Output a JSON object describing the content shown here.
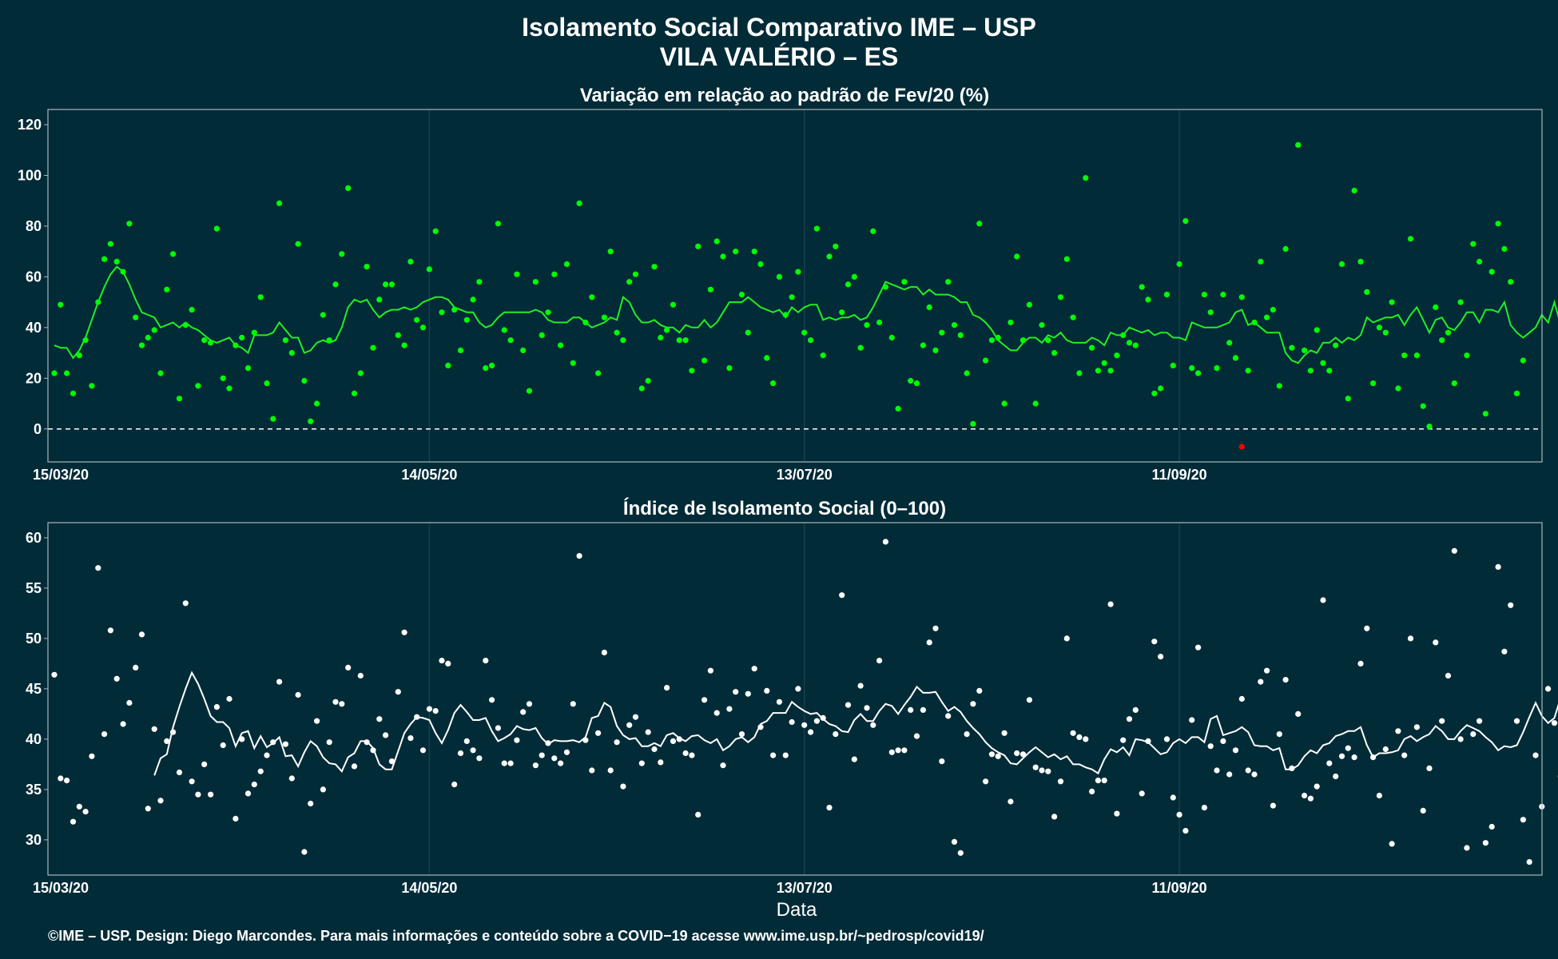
{
  "title": "Isolamento Social Comparativo IME – USP",
  "subtitle": "VILA VALÉRIO – ES",
  "footer": "©IME – USP. Design: Diego Marcondes. Para mais informações e conteúdo sobre a COVID−19 acesse www.ime.usp.br/~pedrosp/covid19/",
  "colors": {
    "background": "#022b38",
    "panel_border": "#a9b7bb",
    "grid": "#16424d",
    "variation_points": "#00ff00",
    "variation_negative": "#ff0000",
    "variation_line": "#22ee22",
    "variation_line_recent": "#ffffff",
    "index_points": "#ffffff",
    "index_line": "#ffffff",
    "text": "#ffffff"
  },
  "chart_data": [
    {
      "type": "scatter",
      "title": "Variação em relação ao padrão de Fev/20 (%)",
      "x_axis": {
        "start_date": "15/03/20",
        "end_date": "07/11/20",
        "tick_labels": [
          "15/03/20",
          "14/05/20",
          "13/07/20",
          "11/09/20"
        ]
      },
      "ylim": [
        -13,
        126
      ],
      "yticks": [
        0,
        20,
        40,
        60,
        80,
        100,
        120
      ],
      "reference_line": 0,
      "grid": "vertical",
      "series": [
        {
          "kind": "points",
          "values": [
            22,
            49,
            22,
            14,
            29,
            35,
            17,
            50,
            67,
            73,
            66,
            62,
            81,
            44,
            33,
            36,
            39,
            22,
            55,
            69,
            12,
            41,
            47,
            17,
            35,
            34,
            79,
            20,
            16,
            33,
            36,
            24,
            38,
            52,
            18,
            4,
            89,
            35,
            30,
            73,
            19,
            3,
            10,
            45,
            35,
            57,
            69,
            95,
            14,
            22,
            64,
            32,
            51,
            57,
            57,
            37,
            33,
            66,
            43,
            40,
            63,
            78,
            46,
            25,
            47,
            31,
            43,
            51,
            58,
            24,
            25,
            81,
            39,
            35,
            61,
            31,
            15,
            58,
            37,
            46,
            61,
            33,
            65,
            26,
            89,
            42,
            52,
            22,
            44,
            70,
            38,
            35,
            58,
            61,
            16,
            19,
            64,
            36,
            39,
            49,
            35,
            35,
            23,
            72,
            27,
            55,
            74,
            68,
            24,
            70,
            53,
            38,
            70,
            65,
            28,
            18,
            60,
            45,
            52,
            62,
            38,
            35,
            79,
            29,
            68,
            72,
            46,
            57,
            60,
            32,
            41,
            78,
            42,
            56,
            36,
            8,
            58,
            19,
            18,
            33,
            48,
            31,
            38,
            58,
            41,
            37,
            22,
            2,
            81,
            27,
            35,
            36,
            10,
            42,
            68,
            35,
            49,
            10,
            41,
            35,
            30,
            52,
            67,
            44,
            22,
            99,
            32,
            23,
            26,
            23,
            29,
            37,
            34,
            33,
            56,
            51,
            14,
            16,
            53,
            25,
            65,
            82,
            24,
            22,
            53,
            46,
            24,
            53,
            34,
            28,
            52,
            23,
            42,
            66,
            44,
            47,
            17,
            71,
            32,
            112,
            31,
            23,
            39,
            26,
            23,
            33,
            65,
            12,
            94,
            66,
            54,
            18,
            40,
            38,
            50,
            16,
            29,
            75,
            29,
            9,
            1,
            48,
            35,
            38,
            18,
            50,
            29,
            73,
            66,
            6,
            62,
            81,
            71,
            58,
            14,
            27
          ],
          "negative_points": [
            [
              190,
              -7
            ]
          ]
        },
        {
          "kind": "moving_average",
          "values": [
            33,
            32,
            32,
            28,
            31,
            36,
            43,
            50,
            56,
            61,
            64,
            62,
            57,
            51,
            46,
            45,
            44,
            40,
            41,
            42,
            40,
            42,
            40,
            39,
            37,
            35,
            34,
            35,
            36,
            33,
            32,
            30,
            37,
            37,
            37,
            38,
            42,
            39,
            36,
            36,
            30,
            31,
            34,
            35,
            34,
            35,
            40,
            48,
            51,
            50,
            51,
            47,
            44,
            46,
            47,
            47,
            48,
            47,
            48,
            50,
            51,
            52,
            52,
            51,
            48,
            47,
            46,
            46,
            42,
            40,
            41,
            44,
            46,
            46,
            46,
            46,
            46,
            47,
            46,
            43,
            42,
            42,
            42,
            44,
            44,
            42,
            40,
            41,
            42,
            44,
            43,
            52,
            50,
            45,
            42,
            42,
            43,
            41,
            40,
            40,
            38,
            41,
            40,
            40,
            43,
            40,
            42,
            46,
            50,
            50,
            50,
            52,
            50,
            48,
            47,
            46,
            47,
            44,
            48,
            46,
            48,
            49,
            49,
            43,
            44,
            43,
            44,
            44,
            45,
            43,
            44,
            48,
            53,
            58,
            57,
            56,
            55,
            56,
            56,
            53,
            55,
            53,
            53,
            53,
            52,
            50,
            50,
            45,
            44,
            42,
            39,
            35,
            33,
            31,
            31,
            34,
            36,
            36,
            34,
            37,
            36,
            38,
            35,
            34,
            34,
            34,
            36,
            35,
            33,
            38,
            37,
            37,
            40,
            39,
            38,
            39,
            37,
            38,
            38,
            36,
            36,
            35,
            42,
            41,
            40,
            40,
            40,
            41,
            42,
            46,
            47,
            41,
            42,
            40,
            38,
            38,
            38,
            30,
            27,
            26,
            29,
            31,
            30,
            34,
            34,
            36,
            34,
            36,
            35,
            37,
            44,
            42,
            43,
            44,
            44,
            45,
            41,
            45,
            48,
            43,
            38,
            43,
            44,
            40,
            39,
            42,
            46,
            46,
            42,
            47,
            47,
            46,
            50,
            41,
            38,
            36,
            38,
            40,
            45,
            42,
            50,
            41,
            41,
            44,
            43,
            48,
            50,
            51,
            42,
            47,
            48,
            50,
            46,
            43,
            40,
            38,
            36,
            38,
            42,
            47,
            50,
            49,
            51,
            39,
            44,
            48,
            42,
            39,
            40,
            38,
            34,
            38,
            45,
            39,
            41,
            46,
            42,
            50,
            53,
            56,
            57,
            48,
            45,
            44,
            40
          ],
          "recent_values_from_index": 268
        }
      ]
    },
    {
      "type": "scatter",
      "title": "Índice de Isolamento Social (0–100)",
      "x_axis": {
        "start_date": "15/03/20",
        "end_date": "07/11/20",
        "tick_labels": [
          "15/03/20",
          "14/05/20",
          "13/07/20",
          "11/09/20"
        ]
      },
      "xlabel": "Data",
      "ylim": [
        26.5,
        61.5
      ],
      "yticks": [
        30,
        35,
        40,
        45,
        50,
        55,
        60
      ],
      "grid": "vertical",
      "series": [
        {
          "kind": "points",
          "values": [
            46.4,
            36.1,
            35.9,
            31.8,
            33.3,
            32.8,
            38.3,
            57,
            40.5,
            50.8,
            46,
            41.5,
            43.6,
            47.1,
            50.4,
            33.1,
            41,
            33.9,
            39.8,
            40.7,
            36.7,
            53.5,
            35.8,
            34.5,
            37.5,
            34.5,
            43.2,
            39.4,
            44,
            32.1,
            40,
            34.6,
            35.5,
            36.8,
            38.4,
            39.7,
            45.7,
            39.5,
            36.1,
            44.4,
            28.8,
            33.6,
            41.8,
            35,
            39.7,
            43.7,
            43.5,
            47.1,
            37.3,
            46.3,
            39.7,
            38.9,
            42,
            40.4,
            37.8,
            44.7,
            50.6,
            40.1,
            42.2,
            38.9,
            43,
            42.8,
            47.8,
            47.5,
            35.5,
            38.6,
            39.8,
            38.9,
            38.1,
            47.8,
            43.9,
            41.1,
            37.6,
            37.6,
            39.9,
            42.7,
            43.5,
            37.4,
            38.4,
            39.6,
            38.1,
            37.6,
            38.7,
            43.5,
            58.2,
            39.9,
            36.9,
            40.6,
            48.6,
            36.9,
            39.7,
            35.3,
            41.4,
            42.2,
            37.6,
            40.7,
            39,
            37.7,
            45.1,
            39.8,
            40,
            38.6,
            38.4,
            32.5,
            43.9,
            46.8,
            42.6,
            37.4,
            43,
            44.7,
            40.5,
            44.5,
            47,
            41.2,
            44.8,
            38.4,
            43.7,
            38.4,
            41.7,
            45,
            41.4,
            40.7,
            41.8,
            42.1,
            33.2,
            40.5,
            54.3,
            43.4,
            38,
            45.3,
            43.1,
            41.4,
            47.8,
            59.6,
            38.7,
            38.9,
            38.9,
            42.9,
            40.3,
            42.9,
            49.6,
            51,
            37.8,
            42.3,
            29.8,
            28.7,
            40.5,
            43.5,
            44.8,
            35.8,
            38.5,
            38.3,
            40.6,
            33.8,
            38.6,
            38.5,
            43.9,
            37.2,
            36.9,
            36.8,
            32.3,
            35.8,
            50,
            40.6,
            40.2,
            40,
            34.8,
            35.9,
            35.9,
            53.4,
            32.6,
            39.9,
            42,
            42.9,
            34.6,
            39.8,
            49.7,
            48.2,
            40,
            34.2,
            32.5,
            30.9,
            41.9,
            49.1,
            33.2,
            39.3,
            36.9,
            39.8,
            36.5,
            38.9,
            44,
            36.9,
            36.5,
            45.7,
            46.8,
            33.4,
            40.5,
            45.9,
            37.1,
            42.5,
            34.4,
            34.1,
            35.3,
            53.8,
            37.6,
            36.3,
            38.3,
            39.1,
            38.2,
            47.5,
            51,
            38.2,
            34.4,
            39,
            29.6,
            40.8,
            38.4,
            50,
            41.2,
            32.9,
            37.1,
            49.6,
            41.8,
            46.3,
            58.7,
            40,
            29.2,
            40.5,
            41.8,
            29.7,
            31.3,
            57.1,
            48.7,
            53.3,
            41.8,
            32,
            27.8,
            38.4,
            33.3,
            45,
            41.6,
            36.3,
            48,
            40.5,
            49.8,
            39.3,
            50,
            44,
            37.8,
            37.3,
            48
          ],
          "start_index": 0
        },
        {
          "kind": "moving_average",
          "values": [
            36.4,
            38.1,
            38.5,
            41.2,
            43.2,
            45,
            46.6,
            45.5,
            44,
            42.3,
            41.7,
            41.7,
            41.1,
            39.3,
            40.6,
            40.8,
            39.1,
            40.3,
            39.2,
            39.6,
            40.2,
            38.3,
            38.4,
            37.3,
            38.7,
            39.8,
            39.3,
            38.2,
            37.6,
            37.5,
            36.8,
            38.2,
            38.6,
            39.8,
            39.8,
            39.1,
            37.5,
            37,
            37,
            38.8,
            40.6,
            41.5,
            42.2,
            42.1,
            41.9,
            40.6,
            39.6,
            40.9,
            42.6,
            43.4,
            42.7,
            41.9,
            41.9,
            42.1,
            40.8,
            39.8,
            40.1,
            40.5,
            41.3,
            41,
            40.9,
            41.1,
            40.1,
            39.5,
            39.9,
            39.8,
            39.8,
            39.9,
            39.7,
            40.2,
            42.1,
            42.3,
            43.6,
            43.2,
            41.3,
            40.4,
            40,
            40.1,
            39.3,
            39.3,
            39.6,
            39.3,
            40.4,
            40.6,
            40.1,
            39.8,
            40.3,
            40.4,
            39.9,
            39.6,
            40,
            38.9,
            39.3,
            40,
            40.2,
            39.7,
            40.2,
            41.5,
            41.8,
            42.6,
            42.6,
            42.6,
            43.7,
            43.2,
            42.8,
            42.5,
            42.6,
            42,
            41.5,
            41.3,
            40.8,
            40.7,
            41.9,
            42.5,
            41.8,
            41.8,
            42.8,
            43.5,
            43.3,
            42.5,
            43.4,
            44.2,
            45.2,
            44.6,
            44.6,
            44.7,
            43.7,
            42.8,
            43.2,
            42.7,
            41.8,
            41.1,
            40.5,
            39.7,
            39.1,
            38.7,
            38.4,
            37.6,
            37.5,
            38.1,
            38.7,
            39.2,
            38.7,
            38.2,
            38.5,
            38,
            38.3,
            37.5,
            37.5,
            37.2,
            37,
            36.6,
            38,
            39,
            38.7,
            39.2,
            38.4,
            40,
            39.9,
            39.7,
            39.1,
            38.5,
            38.7,
            39.6,
            40,
            39.6,
            40.2,
            40.2,
            39.7,
            42,
            42.3,
            40.4,
            40.6,
            40.8,
            41.2,
            40.7,
            39.4,
            39.3,
            39.3,
            38.9,
            39.1,
            37,
            37,
            37.4,
            38.3,
            38.9,
            38.6,
            39.4,
            39.6,
            40.3,
            40.5,
            40.8,
            40.8,
            41.2,
            39.4,
            38.2,
            38.6,
            38.6,
            38.7,
            38.9,
            40,
            40.3,
            39.8,
            40.2,
            40.5,
            41.3,
            40.8,
            40,
            40,
            40.8,
            41.4,
            41.1,
            40.8,
            40.2,
            39.7,
            38.9,
            39.3,
            39.2,
            39.4,
            40.7,
            42.2,
            43.6,
            42.3,
            41.6,
            42.1,
            44.1,
            41.6,
            39.8,
            40.3,
            39.7,
            43,
            41.7,
            39.7,
            41.1,
            42.1,
            39.1,
            38.7,
            36.7,
            38.3,
            39.5,
            40.3,
            40.6,
            41.2,
            42.2,
            42.4,
            42.3,
            42.2,
            42.7,
            40.8,
            41.5,
            37.2
          ],
          "start_index": 16
        }
      ]
    }
  ]
}
